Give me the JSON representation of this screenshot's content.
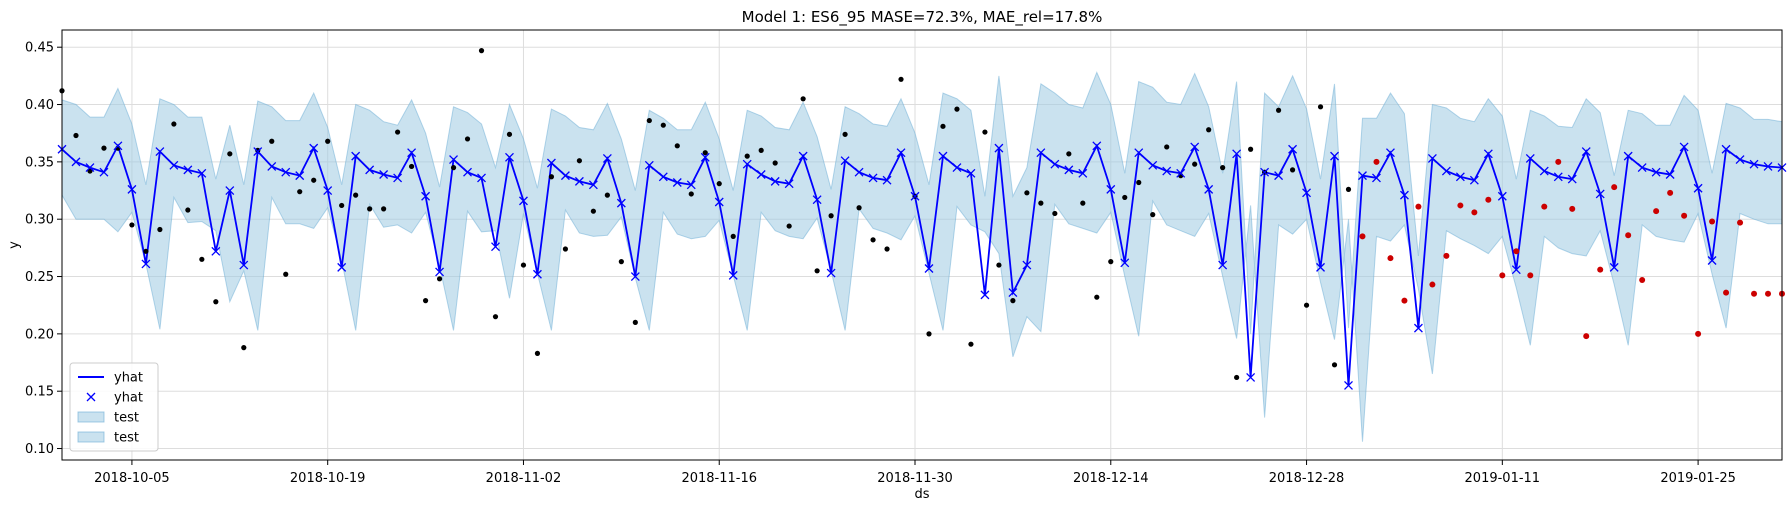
{
  "chart_data": {
    "type": "line",
    "title": "Model 1: ES6_95 MASE=72.3%, MAE_rel=17.8%",
    "xlabel": "ds",
    "ylabel": "y",
    "x_range": [
      "2018-09-30",
      "2019-01-31"
    ],
    "ylim": [
      0.09,
      0.465
    ],
    "x_ticks": [
      "2018-10-05",
      "2018-10-19",
      "2018-11-02",
      "2018-11-16",
      "2018-11-30",
      "2018-12-14",
      "2018-12-28",
      "2019-01-11",
      "2019-01-25"
    ],
    "y_ticks": [
      "0.10",
      "0.15",
      "0.20",
      "0.25",
      "0.30",
      "0.35",
      "0.40",
      "0.45"
    ],
    "grid": true,
    "legend_position": "lower-left",
    "legend": [
      {
        "label": "yhat",
        "kind": "line"
      },
      {
        "label": "yhat",
        "kind": "marker"
      },
      {
        "label": "test",
        "kind": "band"
      },
      {
        "label": "test",
        "kind": "band"
      }
    ],
    "colors": {
      "forecast": "#0000ff",
      "band_fill": "#9ecae1",
      "band_edge": "#6baed6",
      "actual_points": "#000000",
      "test_points": "#cc0000",
      "grid": "#dddddd"
    },
    "series": [
      {
        "name": "yhat",
        "role": "forecast",
        "x": [
          "2018-09-30",
          "2018-10-01",
          "2018-10-02",
          "2018-10-03",
          "2018-10-04",
          "2018-10-05",
          "2018-10-06",
          "2018-10-07",
          "2018-10-08",
          "2018-10-09",
          "2018-10-10",
          "2018-10-11",
          "2018-10-12",
          "2018-10-13",
          "2018-10-14",
          "2018-10-15",
          "2018-10-16",
          "2018-10-17",
          "2018-10-18",
          "2018-10-19",
          "2018-10-20",
          "2018-10-21",
          "2018-10-22",
          "2018-10-23",
          "2018-10-24",
          "2018-10-25",
          "2018-10-26",
          "2018-10-27",
          "2018-10-28",
          "2018-10-29",
          "2018-10-30",
          "2018-10-31",
          "2018-11-01",
          "2018-11-02",
          "2018-11-03",
          "2018-11-04",
          "2018-11-05",
          "2018-11-06",
          "2018-11-07",
          "2018-11-08",
          "2018-11-09",
          "2018-11-10",
          "2018-11-11",
          "2018-11-12",
          "2018-11-13",
          "2018-11-14",
          "2018-11-15",
          "2018-11-16",
          "2018-11-17",
          "2018-11-18",
          "2018-11-19",
          "2018-11-20",
          "2018-11-21",
          "2018-11-22",
          "2018-11-23",
          "2018-11-24",
          "2018-11-25",
          "2018-11-26",
          "2018-11-27",
          "2018-11-28",
          "2018-11-29",
          "2018-11-30",
          "2018-12-01",
          "2018-12-02",
          "2018-12-03",
          "2018-12-04",
          "2018-12-05",
          "2018-12-06",
          "2018-12-07",
          "2018-12-08",
          "2018-12-09",
          "2018-12-10",
          "2018-12-11",
          "2018-12-12",
          "2018-12-13",
          "2018-12-14",
          "2018-12-15",
          "2018-12-16",
          "2018-12-17",
          "2018-12-18",
          "2018-12-19",
          "2018-12-20",
          "2018-12-21",
          "2018-12-22",
          "2018-12-23",
          "2018-12-24",
          "2018-12-25",
          "2018-12-26",
          "2018-12-27",
          "2018-12-28",
          "2018-12-29",
          "2018-12-30",
          "2018-12-31",
          "2019-01-01",
          "2019-01-02",
          "2019-01-03",
          "2019-01-04",
          "2019-01-05",
          "2019-01-06",
          "2019-01-07",
          "2019-01-08",
          "2019-01-09",
          "2019-01-10",
          "2019-01-11",
          "2019-01-12",
          "2019-01-13",
          "2019-01-14",
          "2019-01-15",
          "2019-01-16",
          "2019-01-17",
          "2019-01-18",
          "2019-01-19",
          "2019-01-20",
          "2019-01-21",
          "2019-01-22",
          "2019-01-23",
          "2019-01-24",
          "2019-01-25",
          "2019-01-26",
          "2019-01-27",
          "2019-01-28",
          "2019-01-29",
          "2019-01-30",
          "2019-01-31"
        ],
        "y": [
          0.361,
          0.35,
          0.345,
          0.341,
          0.364,
          0.326,
          0.261,
          0.359,
          0.347,
          0.343,
          0.34,
          0.272,
          0.325,
          0.26,
          0.359,
          0.346,
          0.341,
          0.338,
          0.362,
          0.325,
          0.258,
          0.355,
          0.343,
          0.339,
          0.336,
          0.358,
          0.32,
          0.254,
          0.352,
          0.341,
          0.336,
          0.276,
          0.354,
          0.316,
          0.252,
          0.349,
          0.338,
          0.333,
          0.33,
          0.353,
          0.314,
          0.25,
          0.347,
          0.337,
          0.332,
          0.33,
          0.354,
          0.315,
          0.251,
          0.348,
          0.339,
          0.333,
          0.331,
          0.355,
          0.317,
          0.253,
          0.351,
          0.341,
          0.336,
          0.334,
          0.358,
          0.32,
          0.257,
          0.355,
          0.345,
          0.34,
          0.234,
          0.362,
          0.236,
          0.26,
          0.358,
          0.348,
          0.343,
          0.34,
          0.364,
          0.326,
          0.262,
          0.358,
          0.347,
          0.342,
          0.34,
          0.363,
          0.326,
          0.26,
          0.357,
          0.162,
          0.341,
          0.338,
          0.361,
          0.323,
          0.258,
          0.355,
          0.155,
          0.338,
          0.336,
          0.358,
          0.321,
          0.205,
          0.353,
          0.342,
          0.337,
          0.334,
          0.357,
          0.32,
          0.256,
          0.353,
          0.342,
          0.337,
          0.335,
          0.359,
          0.322,
          0.258,
          0.355,
          0.345,
          0.341,
          0.339,
          0.363,
          0.327,
          0.264,
          0.361,
          0.352,
          0.348,
          0.346,
          0.345
        ]
      },
      {
        "name": "test",
        "role": "band_lower",
        "y": [
          0.321,
          0.3,
          0.3,
          0.3,
          0.289,
          0.306,
          0.261,
          0.204,
          0.319,
          0.297,
          0.298,
          0.29,
          0.228,
          0.255,
          0.203,
          0.319,
          0.296,
          0.296,
          0.292,
          0.31,
          0.264,
          0.203,
          0.313,
          0.293,
          0.295,
          0.288,
          0.306,
          0.259,
          0.203,
          0.307,
          0.289,
          0.29,
          0.231,
          0.305,
          0.253,
          0.203,
          0.308,
          0.288,
          0.285,
          0.286,
          0.302,
          0.249,
          0.203,
          0.306,
          0.287,
          0.283,
          0.285,
          0.299,
          0.251,
          0.203,
          0.306,
          0.29,
          0.285,
          0.283,
          0.301,
          0.255,
          0.203,
          0.309,
          0.292,
          0.288,
          0.282,
          0.303,
          0.253,
          0.203,
          0.311,
          0.295,
          0.289,
          0.27,
          0.18,
          0.215,
          0.202,
          0.313,
          0.296,
          0.292,
          0.288,
          0.306,
          0.25,
          0.198,
          0.316,
          0.295,
          0.29,
          0.285,
          0.305,
          0.25,
          0.196,
          0.312,
          0.127,
          0.295,
          0.287,
          0.3,
          0.245,
          0.195,
          0.3,
          0.106,
          0.285,
          0.281,
          0.295,
          0.239,
          0.165,
          0.29,
          0.283,
          0.277,
          0.27,
          0.285,
          0.24,
          0.19,
          0.285,
          0.275,
          0.27,
          0.268,
          0.29,
          0.243,
          0.19,
          0.295,
          0.285,
          0.282,
          0.28,
          0.305,
          0.252,
          0.205,
          0.305,
          0.3,
          0.296,
          0.296
        ]
      },
      {
        "name": "test",
        "role": "band_upper",
        "y": [
          0.404,
          0.4,
          0.389,
          0.389,
          0.414,
          0.383,
          0.33,
          0.405,
          0.4,
          0.389,
          0.389,
          0.335,
          0.382,
          0.33,
          0.403,
          0.398,
          0.386,
          0.386,
          0.41,
          0.38,
          0.33,
          0.4,
          0.395,
          0.385,
          0.382,
          0.404,
          0.375,
          0.328,
          0.398,
          0.393,
          0.383,
          0.345,
          0.4,
          0.37,
          0.327,
          0.396,
          0.39,
          0.38,
          0.378,
          0.401,
          0.37,
          0.325,
          0.395,
          0.388,
          0.378,
          0.378,
          0.402,
          0.37,
          0.325,
          0.395,
          0.39,
          0.38,
          0.378,
          0.402,
          0.372,
          0.326,
          0.398,
          0.392,
          0.383,
          0.381,
          0.405,
          0.375,
          0.33,
          0.41,
          0.405,
          0.395,
          0.32,
          0.425,
          0.32,
          0.345,
          0.418,
          0.41,
          0.4,
          0.397,
          0.428,
          0.4,
          0.34,
          0.42,
          0.415,
          0.402,
          0.4,
          0.427,
          0.398,
          0.34,
          0.42,
          0.2,
          0.41,
          0.398,
          0.425,
          0.396,
          0.335,
          0.418,
          0.205,
          0.388,
          0.388,
          0.41,
          0.392,
          0.268,
          0.4,
          0.397,
          0.388,
          0.385,
          0.405,
          0.39,
          0.335,
          0.395,
          0.39,
          0.381,
          0.38,
          0.405,
          0.393,
          0.338,
          0.395,
          0.392,
          0.382,
          0.382,
          0.408,
          0.395,
          0.34,
          0.401,
          0.397,
          0.387,
          0.387,
          0.385
        ]
      },
      {
        "name": "y",
        "role": "actual_points",
        "x": [
          "2018-09-30",
          "2018-10-01",
          "2018-10-02",
          "2018-10-03",
          "2018-10-04",
          "2018-10-05",
          "2018-10-06",
          "2018-10-07",
          "2018-10-08",
          "2018-10-09",
          "2018-10-10",
          "2018-10-11",
          "2018-10-12",
          "2018-10-13",
          "2018-10-14",
          "2018-10-15",
          "2018-10-16",
          "2018-10-17",
          "2018-10-18",
          "2018-10-19",
          "2018-10-20",
          "2018-10-21",
          "2018-10-22",
          "2018-10-23",
          "2018-10-24",
          "2018-10-25",
          "2018-10-26",
          "2018-10-27",
          "2018-10-28",
          "2018-10-29",
          "2018-10-30",
          "2018-10-31",
          "2018-11-01",
          "2018-11-02",
          "2018-11-03",
          "2018-11-04",
          "2018-11-05",
          "2018-11-06",
          "2018-11-07",
          "2018-11-08",
          "2018-11-09",
          "2018-11-10",
          "2018-11-11",
          "2018-11-12",
          "2018-11-13",
          "2018-11-14",
          "2018-11-15",
          "2018-11-16",
          "2018-11-17",
          "2018-11-18",
          "2018-11-19",
          "2018-11-20",
          "2018-11-21",
          "2018-11-22",
          "2018-11-23",
          "2018-11-24",
          "2018-11-25",
          "2018-11-26",
          "2018-11-27",
          "2018-11-28",
          "2018-11-29",
          "2018-11-30",
          "2018-12-01",
          "2018-12-02",
          "2018-12-03",
          "2018-12-04",
          "2018-12-05",
          "2018-12-06",
          "2018-12-07",
          "2018-12-08",
          "2018-12-09",
          "2018-12-10",
          "2018-12-11",
          "2018-12-12",
          "2018-12-13",
          "2018-12-14",
          "2018-12-15",
          "2018-12-16",
          "2018-12-17",
          "2018-12-18",
          "2018-12-19",
          "2018-12-20",
          "2018-12-21",
          "2018-12-22",
          "2018-12-23",
          "2018-12-24",
          "2018-12-25",
          "2018-12-26",
          "2018-12-27",
          "2018-12-28",
          "2018-12-29",
          "2018-12-30",
          "2018-12-31"
        ],
        "y": [
          0.412,
          0.373,
          0.342,
          0.362,
          0.362,
          0.295,
          0.272,
          0.291,
          0.383,
          0.308,
          0.265,
          0.228,
          0.357,
          0.188,
          0.36,
          0.368,
          0.252,
          0.324,
          0.334,
          0.368,
          0.312,
          0.321,
          0.309,
          0.309,
          0.376,
          0.346,
          0.229,
          0.248,
          0.345,
          0.37,
          0.447,
          0.215,
          0.374,
          0.26,
          0.183,
          0.337,
          0.274,
          0.351,
          0.307,
          0.321,
          0.263,
          0.21,
          0.386,
          0.382,
          0.364,
          0.322,
          0.358,
          0.331,
          0.285,
          0.355,
          0.36,
          0.349,
          0.294,
          0.405,
          0.255,
          0.303,
          0.374,
          0.31,
          0.282,
          0.274,
          0.422,
          0.32,
          0.2,
          0.381,
          0.396,
          0.191,
          0.376,
          0.26,
          0.229,
          0.323,
          0.314,
          0.305,
          0.357,
          0.314,
          0.232,
          0.263,
          0.319,
          0.332,
          0.304,
          0.363,
          0.338,
          0.348,
          0.378,
          0.345,
          0.162,
          0.361,
          0.341,
          0.395,
          0.343,
          0.225,
          0.398,
          0.173,
          0.326
        ]
      },
      {
        "name": "y_test",
        "role": "test_points",
        "x": [
          "2019-01-01",
          "2019-01-02",
          "2019-01-03",
          "2019-01-04",
          "2019-01-05",
          "2019-01-06",
          "2019-01-07",
          "2019-01-08",
          "2019-01-09",
          "2019-01-10",
          "2019-01-11",
          "2019-01-12",
          "2019-01-13",
          "2019-01-14",
          "2019-01-15",
          "2019-01-16",
          "2019-01-17",
          "2019-01-18",
          "2019-01-19",
          "2019-01-20",
          "2019-01-21",
          "2019-01-22",
          "2019-01-23",
          "2019-01-24",
          "2019-01-25",
          "2019-01-26",
          "2019-01-27",
          "2019-01-28",
          "2019-01-29",
          "2019-01-30",
          "2019-01-31"
        ],
        "y": [
          0.285,
          0.35,
          0.266,
          0.229,
          0.311,
          0.243,
          0.268,
          0.312,
          0.306,
          0.317,
          0.251,
          0.272,
          0.251,
          0.311,
          0.35,
          0.309,
          0.198,
          0.256,
          0.328,
          0.286,
          0.247,
          0.307,
          0.323,
          0.303,
          0.2,
          0.298,
          0.236,
          0.297,
          0.235,
          0.235,
          0.235
        ]
      }
    ]
  }
}
